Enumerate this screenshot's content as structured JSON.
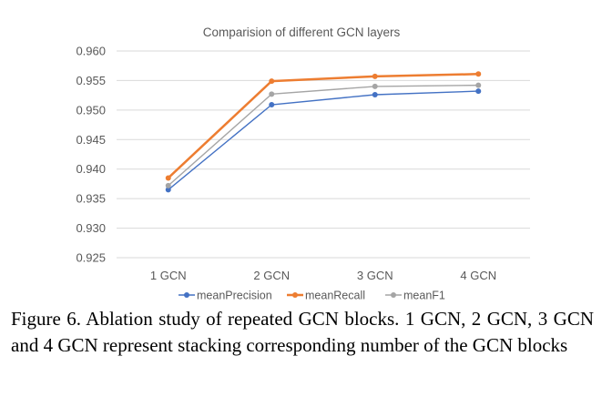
{
  "chart_data": {
    "type": "line",
    "title": "Comparision of different GCN layers",
    "categories": [
      "1 GCN",
      "2 GCN",
      "3 GCN",
      "4 GCN"
    ],
    "ylim": [
      0.925,
      0.96
    ],
    "yticks": [
      "0.925",
      "0.930",
      "0.935",
      "0.940",
      "0.945",
      "0.950",
      "0.955",
      "0.960"
    ],
    "grid": true,
    "legend_position": "bottom",
    "series": [
      {
        "name": "meanPrecision",
        "color": "#4472C4",
        "values": [
          0.9365,
          0.9509,
          0.9526,
          0.9532
        ]
      },
      {
        "name": "meanRecall",
        "color": "#ED7D31",
        "values": [
          0.9385,
          0.9549,
          0.9557,
          0.9561
        ]
      },
      {
        "name": "meanF1",
        "color": "#A5A5A5",
        "values": [
          0.9372,
          0.9527,
          0.954,
          0.9542
        ]
      }
    ]
  },
  "caption": "Figure 6. Ablation study of repeated GCN blocks. 1 GCN, 2 GCN, 3 GCN and 4 GCN represent stacking corresponding number of the GCN blocks"
}
